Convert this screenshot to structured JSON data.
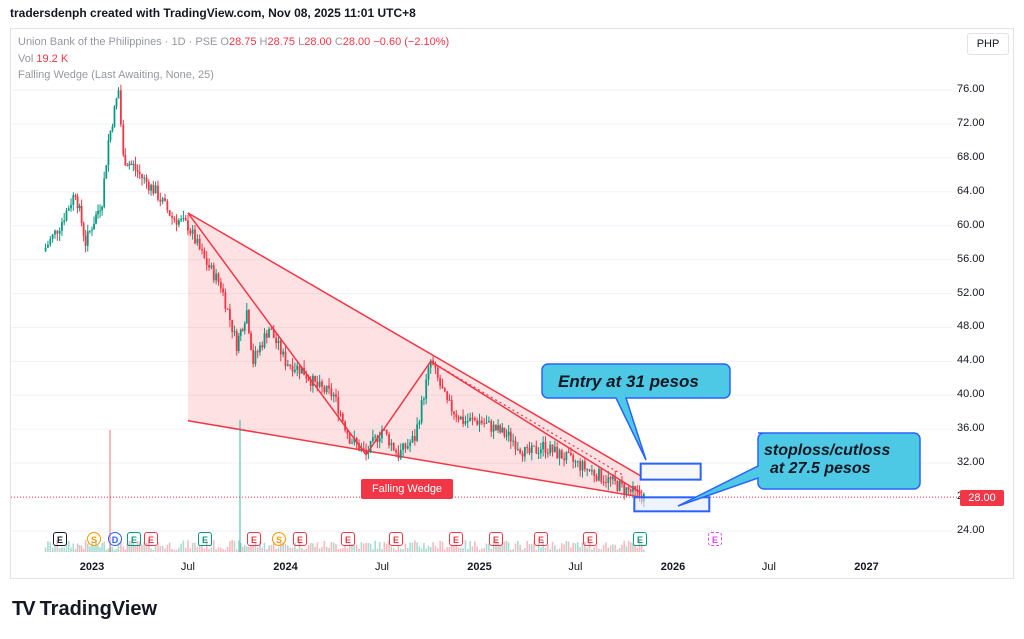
{
  "header": {
    "title": "tradersdenph created with TradingView.com, Nov 08, 2025 11:01 UTC+8"
  },
  "legend": {
    "symbol": "Union Bank of the Philippines · 1D · PSE",
    "o_label": "O",
    "o": "28.75",
    "h_label": "H",
    "h": "28.75",
    "l_label": "L",
    "l": "28.00",
    "c_label": "C",
    "c": "28.00",
    "change": "−0.60 (−2.10%)",
    "vol_label": "Vol",
    "vol": "19.2 K",
    "indicator": "Falling Wedge (Last Awaiting, None, 25)"
  },
  "currency_button": "PHP",
  "last_price": "28.00",
  "pattern_label": "Falling Wedge",
  "callouts": {
    "entry": "Entry at 31 pesos",
    "stop_line1": "stoploss/cutloss",
    "stop_line2": "at 27.5 pesos"
  },
  "footer": {
    "brand": "TradingView",
    "mark": "TV"
  },
  "colors": {
    "up": "#089981",
    "down": "#f23645",
    "callout": "#4dc9e6",
    "box": "#2962ff",
    "wedge_fill": "#f23645"
  },
  "events": [
    {
      "x": 60,
      "t": "E",
      "k": "e0"
    },
    {
      "x": 94,
      "t": "S",
      "k": "s"
    },
    {
      "x": 115,
      "t": "D",
      "k": "d"
    },
    {
      "x": 134,
      "t": "E",
      "k": "eg"
    },
    {
      "x": 151,
      "t": "E",
      "k": "e"
    },
    {
      "x": 205,
      "t": "E",
      "k": "eg"
    },
    {
      "x": 254,
      "t": "E",
      "k": "e"
    },
    {
      "x": 279,
      "t": "S",
      "k": "s"
    },
    {
      "x": 300,
      "t": "E",
      "k": "e"
    },
    {
      "x": 348,
      "t": "E",
      "k": "e"
    },
    {
      "x": 396,
      "t": "E",
      "k": "e"
    },
    {
      "x": 456,
      "t": "E",
      "k": "e"
    },
    {
      "x": 496,
      "t": "E",
      "k": "e"
    },
    {
      "x": 541,
      "t": "E",
      "k": "e"
    },
    {
      "x": 590,
      "t": "E",
      "k": "e"
    },
    {
      "x": 640,
      "t": "E",
      "k": "eg"
    },
    {
      "x": 715,
      "t": "E",
      "k": "em"
    }
  ],
  "chart_data": {
    "type": "candlestick",
    "title": "Union Bank of the Philippines · 1D · PSE",
    "x_ticks": [
      "2023",
      "Jul",
      "2024",
      "Jul",
      "2025",
      "Jul",
      "2026",
      "Jul",
      "2027"
    ],
    "y_ticks": [
      "76.00",
      "72.00",
      "68.00",
      "64.00",
      "60.00",
      "56.00",
      "52.00",
      "48.00",
      "44.00",
      "40.00",
      "36.00",
      "32.00",
      "28.00",
      "24.00"
    ],
    "ylim": [
      22,
      80
    ],
    "price_path": [
      [
        "2022-10",
        57
      ],
      [
        "2022-11",
        60
      ],
      [
        "2022-12",
        64
      ],
      [
        "2022-12-20",
        58
      ],
      [
        "2023-01",
        60
      ],
      [
        "2023-01-20",
        63
      ],
      [
        "2023-02",
        70
      ],
      [
        "2023-02-20",
        76
      ],
      [
        "2023-03",
        68
      ],
      [
        "2023-03-20",
        67
      ],
      [
        "2023-04",
        66
      ],
      [
        "2023-05",
        64
      ],
      [
        "2023-06",
        61
      ],
      [
        "2023-07",
        60
      ],
      [
        "2023-08",
        56
      ],
      [
        "2023-09",
        53
      ],
      [
        "2023-10",
        46
      ],
      [
        "2023-10-20",
        50
      ],
      [
        "2023-11",
        44
      ],
      [
        "2023-12",
        48
      ],
      [
        "2024-01",
        44
      ],
      [
        "2024-02",
        43
      ],
      [
        "2024-03",
        41
      ],
      [
        "2024-04",
        40
      ],
      [
        "2024-05",
        35
      ],
      [
        "2024-06",
        33
      ],
      [
        "2024-07",
        36
      ],
      [
        "2024-08",
        33
      ],
      [
        "2024-09",
        35
      ],
      [
        "2024-10",
        44
      ],
      [
        "2024-11",
        39
      ],
      [
        "2024-12",
        37
      ],
      [
        "2025-01",
        37
      ],
      [
        "2025-02",
        36
      ],
      [
        "2025-03",
        35
      ],
      [
        "2025-04",
        33
      ],
      [
        "2025-05",
        34
      ],
      [
        "2025-06",
        33
      ],
      [
        "2025-07",
        32
      ],
      [
        "2025-08",
        31
      ],
      [
        "2025-09",
        30
      ],
      [
        "2025-10",
        29
      ],
      [
        "2025-11-07",
        28.0
      ]
    ],
    "wedge": {
      "upper_line": [
        [
          "2023-07",
          61.5
        ],
        [
          "2025-11",
          30.5
        ]
      ],
      "lower_line": [
        [
          "2023-07",
          37
        ],
        [
          "2025-11",
          28.0
        ]
      ],
      "zigzag": [
        [
          "2023-07",
          61.5
        ],
        [
          "2024-06",
          33
        ],
        [
          "2024-10",
          44
        ],
        [
          "2025-11",
          28.5
        ]
      ]
    },
    "entry_price": 31,
    "stop_price": 27.5,
    "last_price": 28.0
  }
}
